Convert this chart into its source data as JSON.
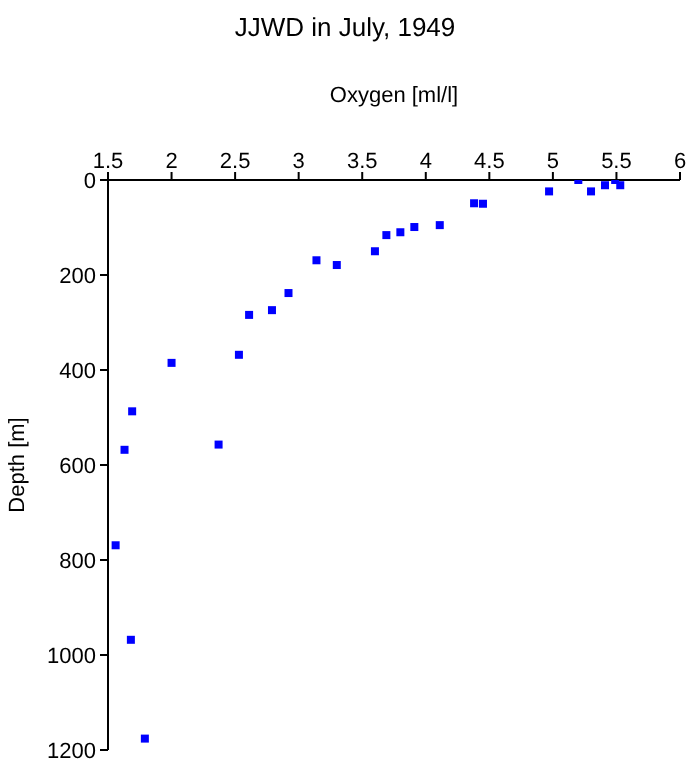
{
  "chart_data": {
    "type": "scatter",
    "title": "JJWD in July, 1949",
    "xlabel": "Oxygen [ml/l]",
    "ylabel": "Depth [m]",
    "xlim": [
      1.5,
      6
    ],
    "xticks": [
      1.5,
      2,
      2.5,
      3,
      3.5,
      4,
      4.5,
      5,
      5.5,
      6
    ],
    "ylim": [
      1200,
      0
    ],
    "yticks": [
      0,
      200,
      400,
      600,
      800,
      1000,
      1200
    ],
    "grid": false,
    "legend": false,
    "marker": "square",
    "series": [
      {
        "color": "#0000ff",
        "x": [
          2.0,
          2.53,
          2.61,
          2.79,
          2.92,
          3.14,
          3.3,
          3.6,
          3.69,
          3.8,
          3.91,
          4.11,
          4.38,
          4.45,
          4.97,
          5.2,
          5.3,
          5.41,
          5.49,
          5.53,
          1.69,
          1.63,
          2.37,
          1.56,
          1.68,
          1.79
        ],
        "values": [
          385,
          368,
          284,
          274,
          238,
          169,
          179,
          150,
          116,
          110,
          99,
          95,
          49,
          50,
          24,
          0,
          24,
          11,
          0,
          11,
          487,
          568,
          557,
          769,
          968,
          1176
        ]
      }
    ]
  }
}
